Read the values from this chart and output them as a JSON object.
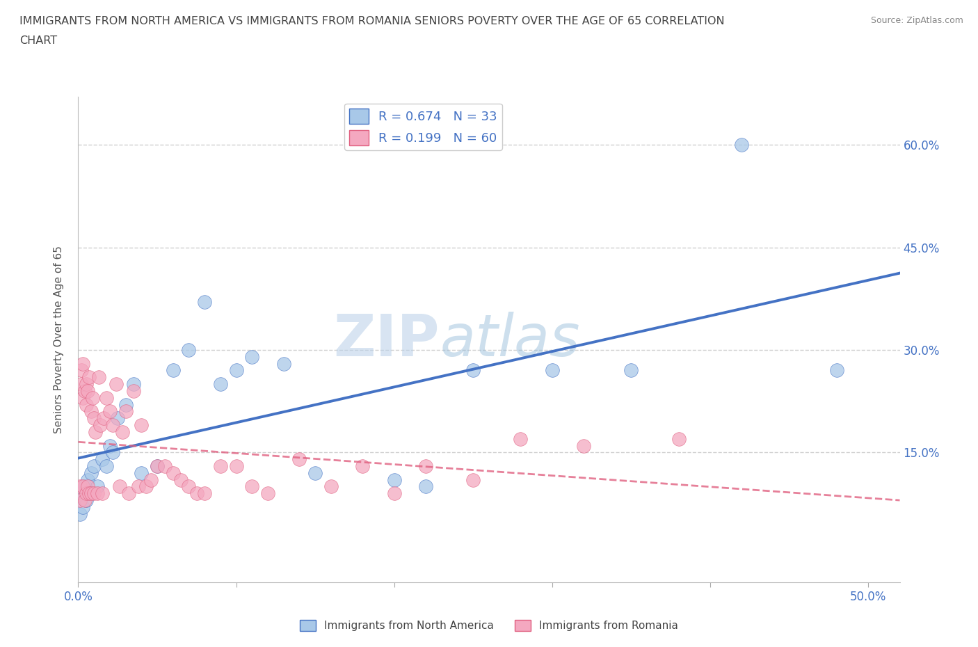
{
  "title_line1": "IMMIGRANTS FROM NORTH AMERICA VS IMMIGRANTS FROM ROMANIA SENIORS POVERTY OVER THE AGE OF 65 CORRELATION",
  "title_line2": "CHART",
  "source": "Source: ZipAtlas.com",
  "ylabel": "Seniors Poverty Over the Age of 65",
  "xlim": [
    0.0,
    0.52
  ],
  "ylim": [
    -0.04,
    0.67
  ],
  "R_north": 0.674,
  "N_north": 33,
  "R_romania": 0.199,
  "N_romania": 60,
  "color_north": "#a8c8e8",
  "color_romania": "#f4a8c0",
  "color_north_line": "#4472c4",
  "color_romania_line": "#e06080",
  "watermark_ZIP": "ZIP",
  "watermark_atlas": "atlas",
  "north_america_x": [
    0.001,
    0.002,
    0.003,
    0.004,
    0.005,
    0.006,
    0.008,
    0.01,
    0.012,
    0.015,
    0.018,
    0.02,
    0.022,
    0.025,
    0.03,
    0.035,
    0.04,
    0.05,
    0.06,
    0.07,
    0.08,
    0.09,
    0.1,
    0.11,
    0.13,
    0.15,
    0.2,
    0.22,
    0.25,
    0.3,
    0.35,
    0.42,
    0.48
  ],
  "north_america_y": [
    0.06,
    0.09,
    0.07,
    0.1,
    0.08,
    0.11,
    0.12,
    0.13,
    0.1,
    0.14,
    0.13,
    0.16,
    0.15,
    0.2,
    0.22,
    0.25,
    0.12,
    0.13,
    0.27,
    0.3,
    0.37,
    0.25,
    0.27,
    0.29,
    0.28,
    0.12,
    0.11,
    0.1,
    0.27,
    0.27,
    0.27,
    0.6,
    0.27
  ],
  "romania_x": [
    0.001,
    0.001,
    0.002,
    0.002,
    0.003,
    0.003,
    0.003,
    0.004,
    0.004,
    0.005,
    0.005,
    0.005,
    0.006,
    0.006,
    0.007,
    0.007,
    0.008,
    0.008,
    0.009,
    0.01,
    0.01,
    0.011,
    0.012,
    0.013,
    0.014,
    0.015,
    0.016,
    0.018,
    0.02,
    0.022,
    0.024,
    0.026,
    0.028,
    0.03,
    0.032,
    0.035,
    0.038,
    0.04,
    0.043,
    0.046,
    0.05,
    0.055,
    0.06,
    0.065,
    0.07,
    0.075,
    0.08,
    0.09,
    0.1,
    0.11,
    0.12,
    0.14,
    0.16,
    0.18,
    0.2,
    0.22,
    0.25,
    0.28,
    0.32,
    0.38
  ],
  "romania_y": [
    0.1,
    0.08,
    0.27,
    0.25,
    0.28,
    0.23,
    0.1,
    0.24,
    0.08,
    0.25,
    0.22,
    0.09,
    0.24,
    0.1,
    0.26,
    0.09,
    0.21,
    0.09,
    0.23,
    0.2,
    0.09,
    0.18,
    0.09,
    0.26,
    0.19,
    0.09,
    0.2,
    0.23,
    0.21,
    0.19,
    0.25,
    0.1,
    0.18,
    0.21,
    0.09,
    0.24,
    0.1,
    0.19,
    0.1,
    0.11,
    0.13,
    0.13,
    0.12,
    0.11,
    0.1,
    0.09,
    0.09,
    0.13,
    0.13,
    0.1,
    0.09,
    0.14,
    0.1,
    0.13,
    0.09,
    0.13,
    0.11,
    0.17,
    0.16,
    0.17
  ],
  "grid_color": "#d0d0d0",
  "background_color": "#ffffff",
  "tick_label_color": "#4472c4",
  "ylabel_color": "#555555"
}
